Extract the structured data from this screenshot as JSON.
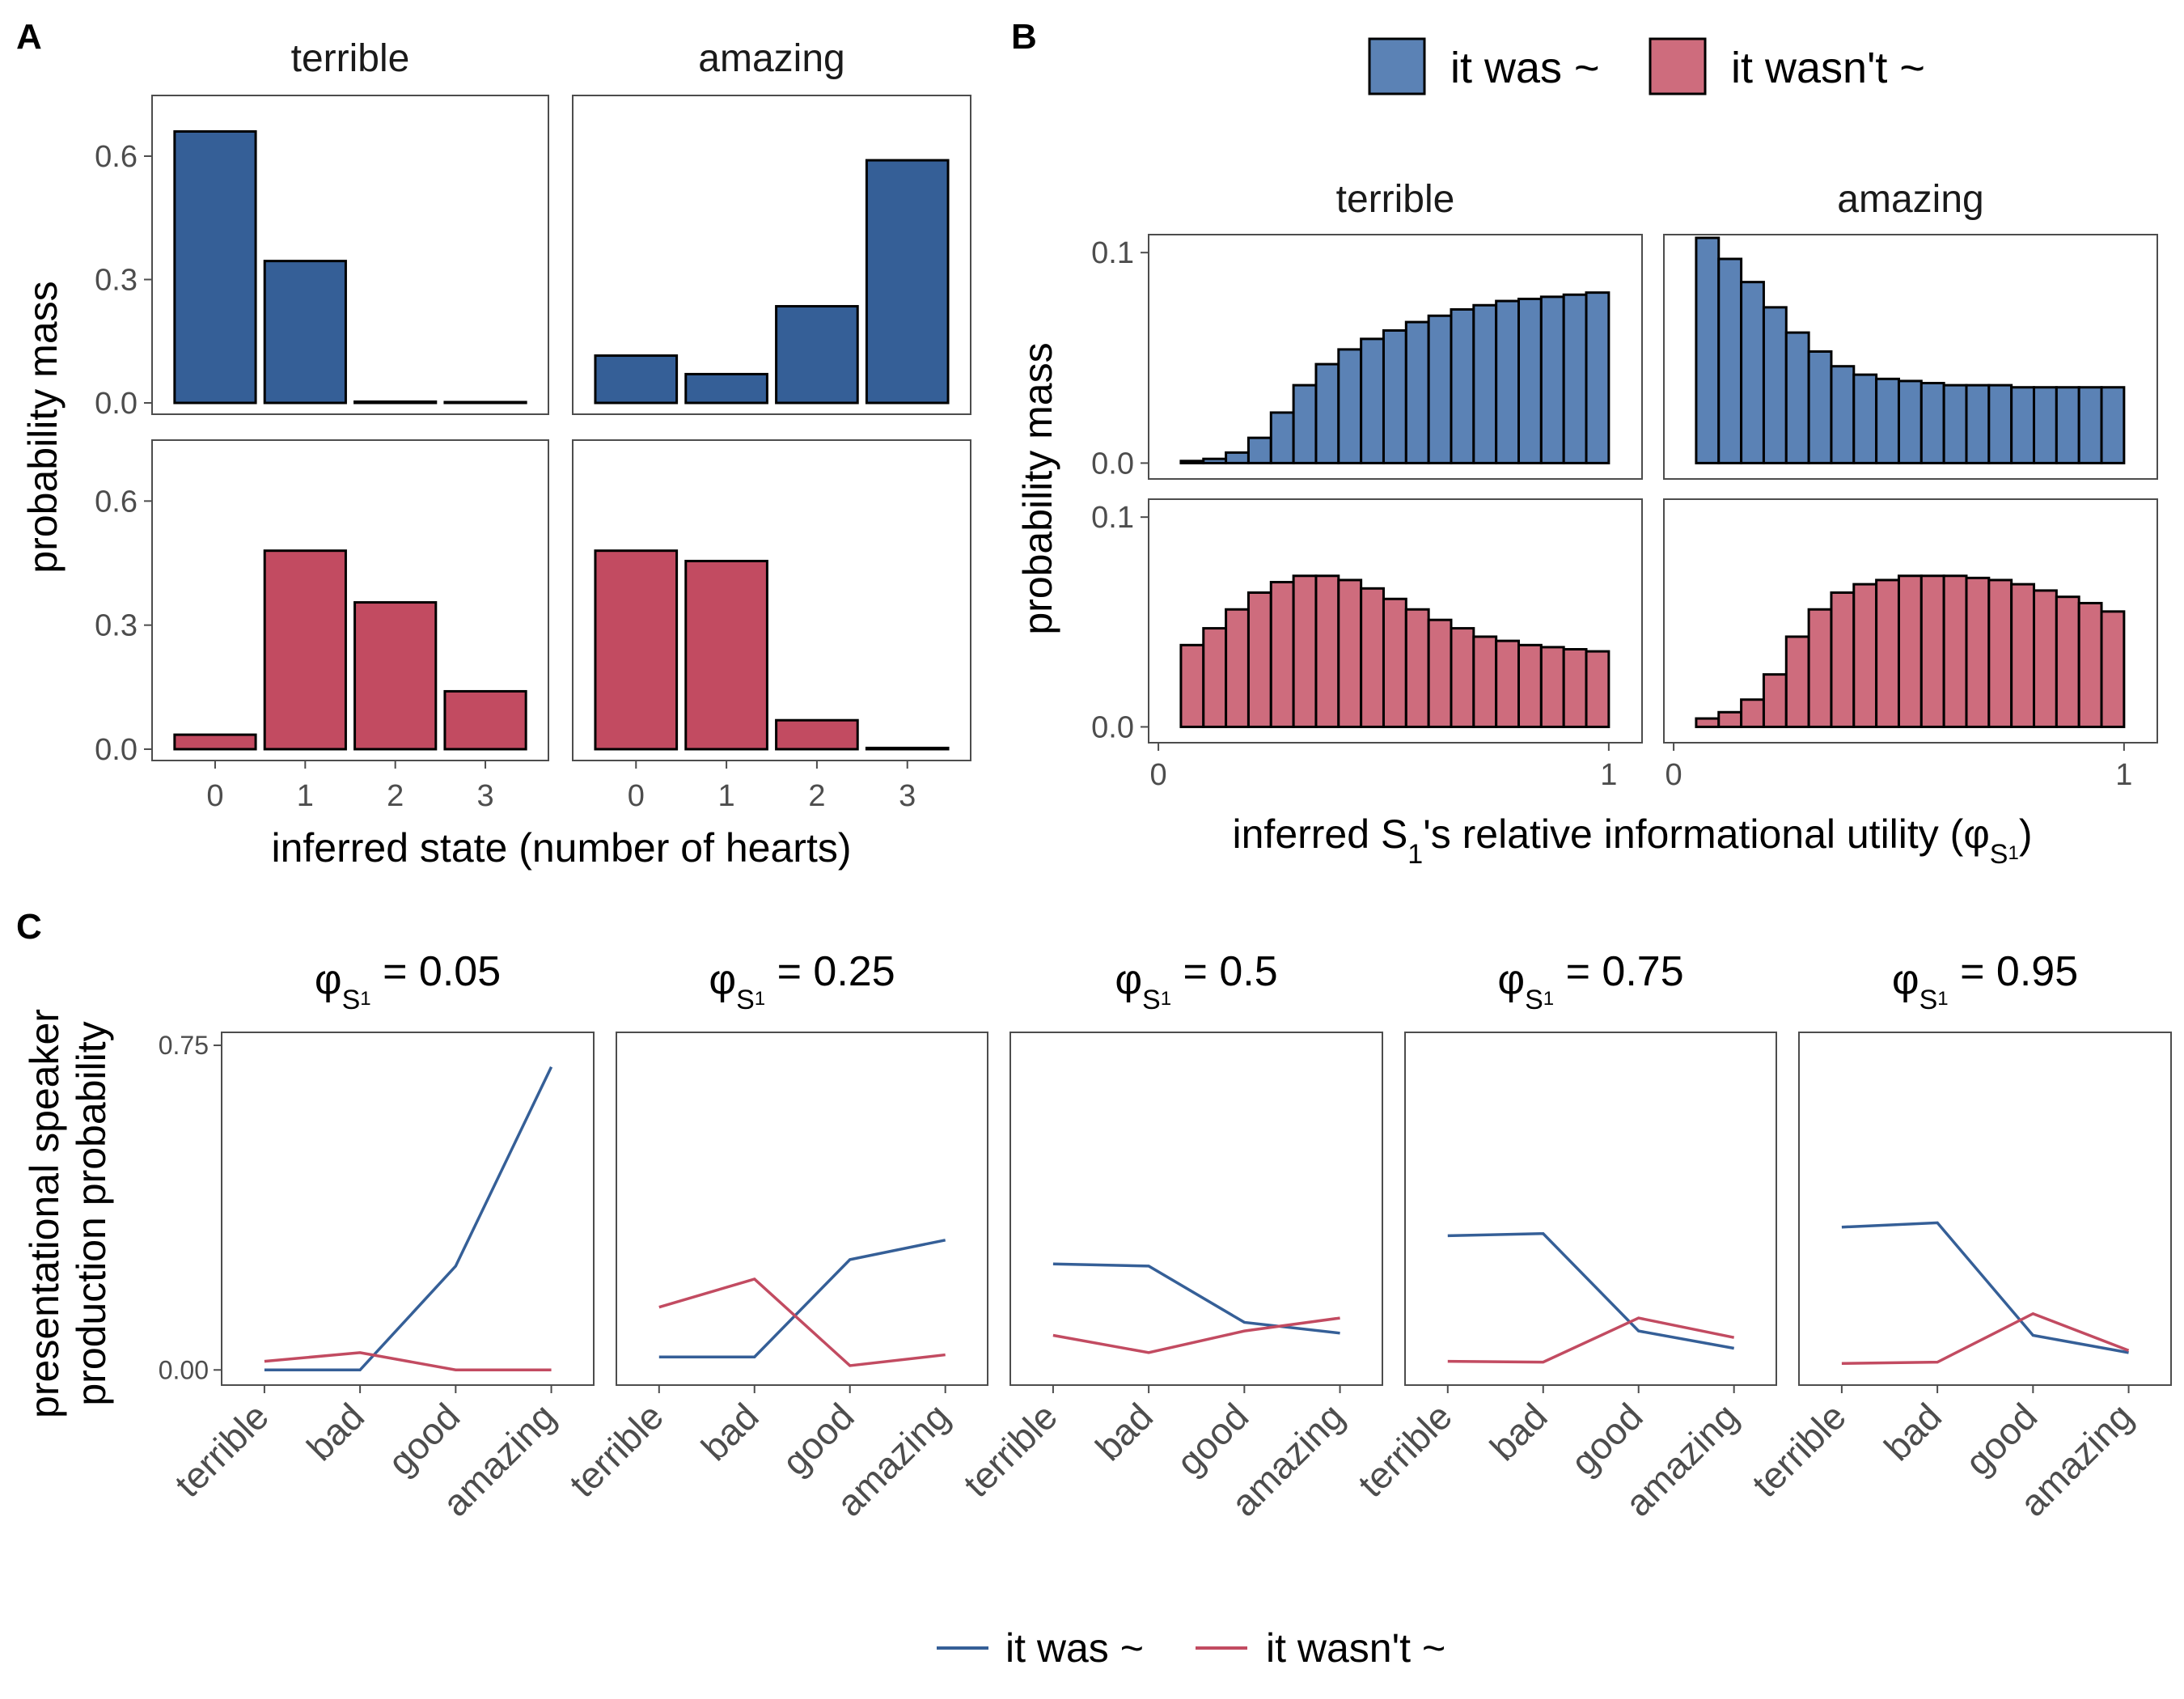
{
  "colors": {
    "blue": "#355F97",
    "red": "#C24B61",
    "blue_light": "#5B82B5",
    "red_light": "#CE6C7D"
  },
  "panel_letters": [
    "A",
    "B",
    "C"
  ],
  "legend": {
    "items": [
      "it was ~",
      "it wasn't ~"
    ]
  },
  "chart_data": [
    {
      "panel": "A",
      "type": "bar",
      "xlabel": "inferred state (number of hearts)",
      "ylabel": "probability mass",
      "ylim": [
        0,
        0.72
      ],
      "yticks": [
        "0.0",
        "0.3",
        "0.6"
      ],
      "ytick_values": [
        0,
        0.3,
        0.6
      ],
      "categories": [
        "0",
        "1",
        "2",
        "3"
      ],
      "columns": [
        "terrible",
        "amazing"
      ],
      "rows": [
        {
          "series": "it was ~",
          "values": {
            "terrible": [
              0.66,
              0.345,
              0.003,
              0.002
            ],
            "amazing": [
              0.115,
              0.07,
              0.235,
              0.59
            ]
          }
        },
        {
          "series": "it wasn't ~",
          "values": {
            "terrible": [
              0.035,
              0.48,
              0.355,
              0.14
            ],
            "amazing": [
              0.48,
              0.455,
              0.07,
              0.003
            ]
          }
        }
      ]
    },
    {
      "panel": "B",
      "type": "bar",
      "xlabel": "inferred S",
      "xlabel_sub": "1",
      "xlabel_tail": "'s relative informational utility (φ",
      "xlabel_tail_sub": "S",
      "xlabel_tail_subsub": "1",
      "xlabel_close": ")",
      "ylabel": "probability mass",
      "ylim": [
        -0.006,
        0.107
      ],
      "yticks": [
        "0.0",
        "0.1"
      ],
      "ytick_values": [
        0,
        0.1
      ],
      "xticks": [
        "0",
        "1"
      ],
      "xtick_values": [
        0,
        1
      ],
      "x": [
        0.05,
        0.1,
        0.15,
        0.2,
        0.25,
        0.3,
        0.35,
        0.4,
        0.45,
        0.5,
        0.55,
        0.6,
        0.65,
        0.7,
        0.75,
        0.8,
        0.85,
        0.9,
        0.95
      ],
      "columns": [
        "terrible",
        "amazing"
      ],
      "rows": [
        {
          "series": "it was ~",
          "values": {
            "terrible": [
              0.001,
              0.002,
              0.005,
              0.012,
              0.024,
              0.037,
              0.047,
              0.054,
              0.059,
              0.063,
              0.067,
              0.07,
              0.073,
              0.075,
              0.077,
              0.078,
              0.079,
              0.08,
              0.081
            ],
            "amazing": [
              0.107,
              0.097,
              0.086,
              0.074,
              0.062,
              0.053,
              0.046,
              0.042,
              0.04,
              0.039,
              0.038,
              0.037,
              0.037,
              0.037,
              0.036,
              0.036,
              0.036,
              0.036,
              0.036
            ]
          }
        },
        {
          "series": "it wasn't ~",
          "values": {
            "terrible": [
              0.039,
              0.047,
              0.056,
              0.064,
              0.069,
              0.072,
              0.072,
              0.07,
              0.066,
              0.061,
              0.056,
              0.051,
              0.047,
              0.043,
              0.041,
              0.039,
              0.038,
              0.037,
              0.036
            ],
            "amazing": [
              0.004,
              0.007,
              0.013,
              0.025,
              0.043,
              0.056,
              0.064,
              0.068,
              0.07,
              0.072,
              0.072,
              0.072,
              0.071,
              0.07,
              0.068,
              0.065,
              0.062,
              0.059,
              0.055
            ]
          }
        }
      ]
    },
    {
      "panel": "C",
      "type": "line",
      "ylabel": [
        "presentational speaker",
        "production probability"
      ],
      "ylim": [
        -0.035,
        0.78
      ],
      "yticks": [
        "0.00",
        "0.75"
      ],
      "ytick_values": [
        0,
        0.75
      ],
      "categories": [
        "terrible",
        "bad",
        "good",
        "amazing"
      ],
      "facet_prefix": "φ",
      "facet_sub": "S",
      "facet_subsub": "1",
      "facets": [
        {
          "label": " = 0.05",
          "it was ~": [
            0.0,
            0.0,
            0.24,
            0.7
          ],
          "it wasn't ~": [
            0.02,
            0.04,
            0.0,
            0.0
          ]
        },
        {
          "label": " = 0.25",
          "it was ~": [
            0.03,
            0.03,
            0.255,
            0.3
          ],
          "it wasn't ~": [
            0.145,
            0.21,
            0.01,
            0.035
          ]
        },
        {
          "label": " = 0.5",
          "it was ~": [
            0.245,
            0.24,
            0.11,
            0.085
          ],
          "it wasn't ~": [
            0.08,
            0.04,
            0.09,
            0.12
          ]
        },
        {
          "label": " = 0.75",
          "it was ~": [
            0.31,
            0.315,
            0.09,
            0.05
          ],
          "it wasn't ~": [
            0.02,
            0.018,
            0.12,
            0.075
          ]
        },
        {
          "label": " = 0.95",
          "it was ~": [
            0.33,
            0.34,
            0.08,
            0.04
          ],
          "it wasn't ~": [
            0.015,
            0.018,
            0.13,
            0.045
          ]
        }
      ]
    }
  ]
}
